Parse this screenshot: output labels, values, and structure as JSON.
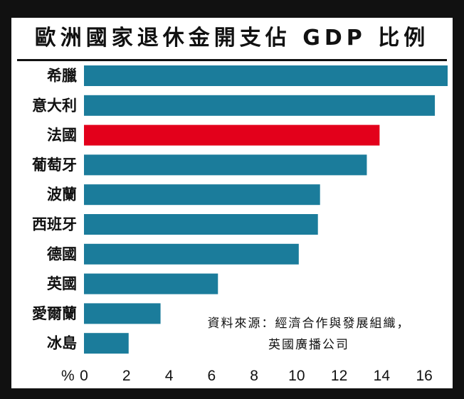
{
  "title": "歐洲國家退休金開支佔 GDP 比例",
  "source": {
    "line1": "資料來源：經濟合作與發展組織，",
    "line2": "英國廣播公司"
  },
  "colors": {
    "bar": "#1b7c9b",
    "highlight": "#e3001b",
    "background": "#ffffff",
    "frame": "#111111"
  },
  "chart_data": {
    "type": "bar",
    "orientation": "horizontal",
    "title": "歐洲國家退休金開支佔 GDP 比例",
    "categories": [
      "希臘",
      "意大利",
      "法國",
      "葡萄牙",
      "波蘭",
      "西班牙",
      "德國",
      "英國",
      "愛爾蘭",
      "冰島"
    ],
    "values": [
      17.1,
      16.5,
      13.9,
      13.3,
      11.1,
      11.0,
      10.1,
      6.3,
      3.6,
      2.1
    ],
    "highlight_index": 2,
    "xlabel": "%",
    "ylabel": "",
    "xlim": [
      0,
      17.1
    ],
    "xticks": [
      0,
      2,
      4,
      6,
      8,
      10,
      12,
      14,
      16
    ],
    "grid": false,
    "legend": "none"
  }
}
